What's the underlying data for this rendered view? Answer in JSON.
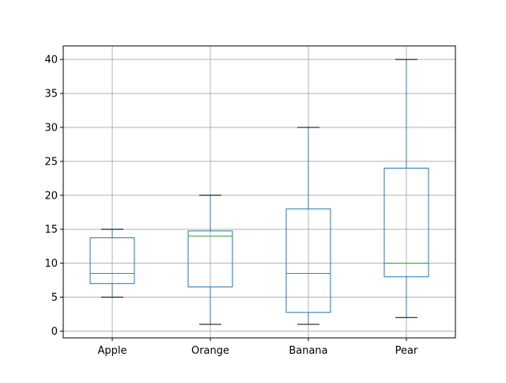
{
  "chart_data": {
    "type": "box",
    "categories": [
      "Apple",
      "Orange",
      "Banana",
      "Pear"
    ],
    "boxes": [
      {
        "category": "Apple",
        "whisker_low": 5,
        "q1": 7,
        "median": 8.5,
        "q3": 13.75,
        "whisker_high": 15
      },
      {
        "category": "Orange",
        "whisker_low": 1,
        "q1": 6.5,
        "median": 14,
        "q3": 14.75,
        "whisker_high": 20
      },
      {
        "category": "Banana",
        "whisker_low": 1,
        "q1": 2.75,
        "median": 8.5,
        "q3": 18,
        "whisker_high": 30
      },
      {
        "category": "Pear",
        "whisker_low": 2,
        "q1": 8,
        "median": 10,
        "q3": 24,
        "whisker_high": 40
      }
    ],
    "y_ticks": [
      "0",
      "5",
      "10",
      "15",
      "20",
      "25",
      "30",
      "35",
      "40"
    ],
    "ylim": [
      -1,
      42
    ],
    "grid": true,
    "colors": {
      "box": "#1f77b4",
      "median": "#2ca02c",
      "cap": "#000000",
      "grid": "#b0b0b0",
      "axes": "#000000"
    }
  }
}
